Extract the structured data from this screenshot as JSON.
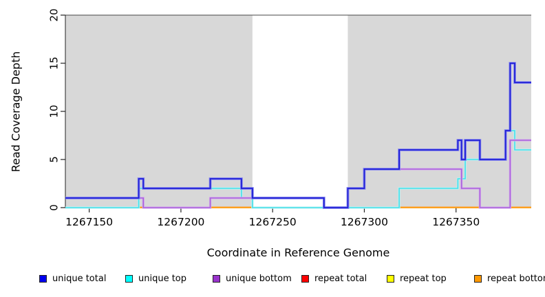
{
  "chart_data": {
    "type": "line",
    "subtype": "step-coverage",
    "title": "",
    "xlabel": "Coordinate in Reference Genome",
    "ylabel": "Read Coverage Depth",
    "xlim": [
      1267137,
      1267391
    ],
    "ylim": [
      0,
      20
    ],
    "xticks": [
      1267150,
      1267200,
      1267250,
      1267300,
      1267350
    ],
    "yticks": [
      0,
      5,
      10,
      15,
      20
    ],
    "grid": false,
    "legend_position": "bottom",
    "shaded_regions": [
      {
        "from": 1267137,
        "to": 1267239,
        "color": "#d8d8d8"
      },
      {
        "from": 1267291,
        "to": 1267391,
        "color": "#d8d8d8"
      }
    ],
    "series": [
      {
        "name": "unique total",
        "color": "#1f1fd4",
        "halo": "#8585f0",
        "width": 1.8,
        "steps": [
          [
            1267137,
            1
          ],
          [
            1267177,
            3
          ],
          [
            1267179.5,
            2
          ],
          [
            1267216,
            3
          ],
          [
            1267233,
            2
          ],
          [
            1267239,
            1
          ],
          [
            1267278,
            0
          ],
          [
            1267291,
            2
          ],
          [
            1267300,
            4
          ],
          [
            1267319,
            6
          ],
          [
            1267351,
            7
          ],
          [
            1267353,
            5
          ],
          [
            1267355,
            7
          ],
          [
            1267363,
            5
          ],
          [
            1267377,
            8
          ],
          [
            1267379.5,
            15
          ],
          [
            1267382,
            13
          ]
        ]
      },
      {
        "name": "unique top",
        "color": "#45dfe8",
        "halo": "#bdf2f5",
        "width": 1.6,
        "steps": [
          [
            1267137,
            0
          ],
          [
            1267177,
            2
          ],
          [
            1267233,
            1
          ],
          [
            1267239,
            0
          ],
          [
            1267319,
            2
          ],
          [
            1267351,
            3
          ],
          [
            1267355,
            5
          ],
          [
            1267377,
            8
          ],
          [
            1267382,
            6
          ]
        ]
      },
      {
        "name": "unique bottom",
        "color": "#aa62da",
        "halo": "#d4aaee",
        "width": 1.6,
        "steps": [
          [
            1267137,
            1
          ],
          [
            1267179.5,
            0
          ],
          [
            1267216,
            1
          ],
          [
            1267278,
            0
          ],
          [
            1267291,
            2
          ],
          [
            1267300,
            4
          ],
          [
            1267353,
            2
          ],
          [
            1267363,
            0
          ],
          [
            1267379.5,
            7
          ]
        ]
      },
      {
        "name": "repeat total",
        "color": "#dd2222",
        "width": 1.4,
        "steps": [
          [
            1267137,
            0
          ]
        ]
      },
      {
        "name": "repeat top",
        "color": "#eeee00",
        "width": 1.4,
        "steps": [
          [
            1267137,
            0
          ]
        ]
      },
      {
        "name": "repeat bottom",
        "color": "#ff9900",
        "width": 1.4,
        "steps": [
          [
            1267137,
            0
          ]
        ]
      }
    ],
    "baseline_segments": [
      {
        "from": 1267137,
        "to": 1267177,
        "color": "#7fc97f"
      },
      {
        "from": 1267177,
        "to": 1267179.5,
        "color": "#ff9d23"
      },
      {
        "from": 1267179.5,
        "to": 1267216,
        "color": "#d0649a"
      },
      {
        "from": 1267216,
        "to": 1267239,
        "color": "#ff9d23"
      },
      {
        "from": 1267239,
        "to": 1267319,
        "color": "#7fc97f"
      },
      {
        "from": 1267319,
        "to": 1267363,
        "color": "#ff9d23"
      },
      {
        "from": 1267363,
        "to": 1267379.5,
        "color": "#d4547e"
      },
      {
        "from": 1267379.5,
        "to": 1267391,
        "color": "#ff9d23"
      }
    ],
    "legend": [
      {
        "label": "unique total",
        "color": "#0000ee"
      },
      {
        "label": "unique top",
        "color": "#00ffff"
      },
      {
        "label": "unique bottom",
        "color": "#9933cc"
      },
      {
        "label": "repeat total",
        "color": "#ff0000"
      },
      {
        "label": "repeat top",
        "color": "#ffff00"
      },
      {
        "label": "repeat bottom",
        "color": "#ff9900"
      }
    ]
  }
}
